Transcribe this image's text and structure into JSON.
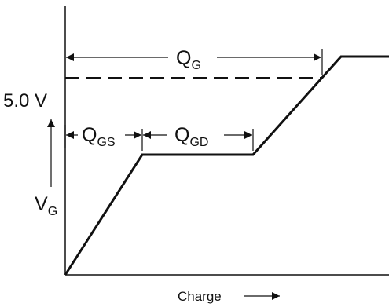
{
  "diagram": {
    "voltage_label": "5.0 V",
    "vg_label": {
      "main": "V",
      "sub": "G"
    },
    "qg_label": {
      "main": "Q",
      "sub": "G"
    },
    "qgs_label": {
      "main": "Q",
      "sub": "GS"
    },
    "qgd_label": {
      "main": "Q",
      "sub": "GD"
    },
    "x_axis_label": "Charge"
  }
}
